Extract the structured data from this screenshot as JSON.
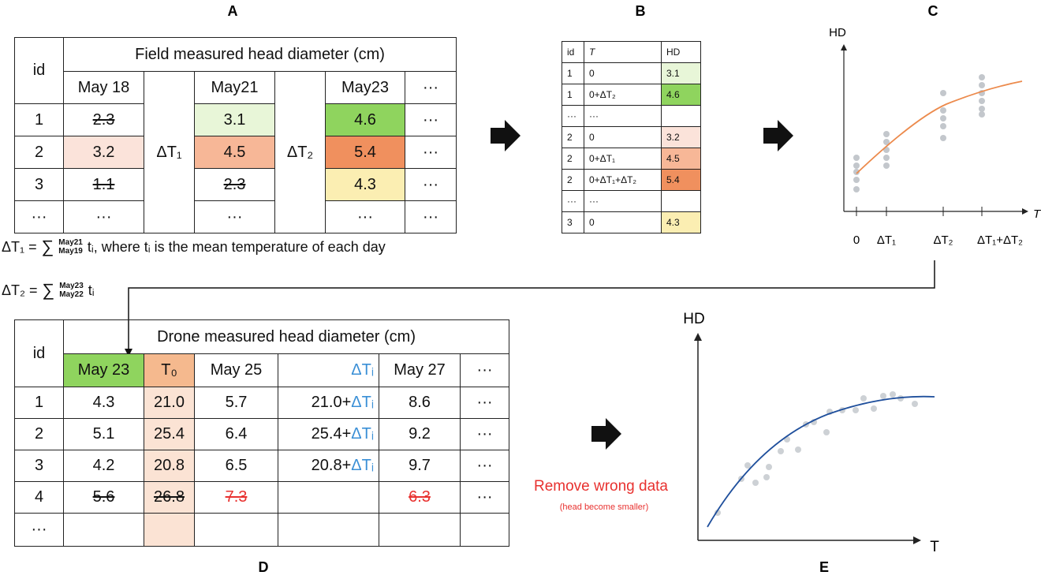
{
  "panels": {
    "a": "A",
    "b": "B",
    "c": "C",
    "d": "D",
    "e": "E"
  },
  "table_a": {
    "id_header": "id",
    "title": "Field measured head diameter (cm)",
    "dates": [
      "May 18",
      "May21",
      "May23",
      "···"
    ],
    "deltas": [
      "ΔT₁",
      "ΔT₂"
    ],
    "rows": [
      [
        "1",
        "2.3",
        "3.1",
        "4.6",
        "···"
      ],
      [
        "2",
        "3.2",
        "4.5",
        "5.4",
        "···"
      ],
      [
        "3",
        "1.1",
        "2.3",
        "4.3",
        "···"
      ],
      [
        "···",
        "···",
        "···",
        "···",
        "···"
      ]
    ]
  },
  "formulas": [
    {
      "lhs": "ΔT₁ =",
      "sum": "∑",
      "upper": "May21",
      "lower": "May19",
      "rest": "tᵢ, where tᵢ is the mean temperature of each day"
    },
    {
      "lhs": "ΔT₂ =",
      "sum": "∑",
      "upper": "May23",
      "lower": "May22",
      "rest": "tᵢ"
    }
  ],
  "table_b": {
    "headers": [
      "id",
      "T",
      "HD"
    ],
    "rows": [
      [
        "1",
        "0",
        "3.1"
      ],
      [
        "1",
        "0+ΔT₂",
        "4.6"
      ],
      [
        "···",
        "···"
      ],
      [
        "2",
        "0",
        "3.2"
      ],
      [
        "2",
        "0+ΔT₁",
        "4.5"
      ],
      [
        "2",
        "0+ΔT₁+ΔT₂",
        "5.4"
      ],
      [
        "···",
        "···"
      ],
      [
        "3",
        "0",
        "4.3"
      ]
    ]
  },
  "chart_c": {
    "y_label": "HD",
    "x_label": "T",
    "x_ticks": [
      "0",
      "ΔT₁",
      "ΔT₂",
      "ΔT₁+ΔT₂"
    ]
  },
  "table_d": {
    "id_header": "id",
    "title": "Drone measured head diameter (cm)",
    "columns": [
      "May 23",
      "T₀",
      "May 25",
      "ΔTᵢ",
      "May 27",
      "···"
    ],
    "rows": [
      [
        "1",
        "4.3",
        "21.0",
        "5.7",
        [
          "21.0+",
          "ΔTᵢ"
        ],
        "8.6",
        "···"
      ],
      [
        "2",
        "5.1",
        "25.4",
        "6.4",
        [
          "25.4+",
          "ΔTᵢ"
        ],
        "9.2",
        "···"
      ],
      [
        "3",
        "4.2",
        "20.8",
        "6.5",
        [
          "20.8+",
          "ΔTᵢ"
        ],
        "9.7",
        "···"
      ],
      [
        "4",
        "5.6",
        "26.8",
        "7.3",
        "6.3",
        "···"
      ],
      [
        "···"
      ]
    ]
  },
  "annotation": {
    "text": "Remove wrong data",
    "note": "(head become smaller)"
  },
  "chart_e": {
    "y_label": "HD",
    "x_label": "T"
  }
}
